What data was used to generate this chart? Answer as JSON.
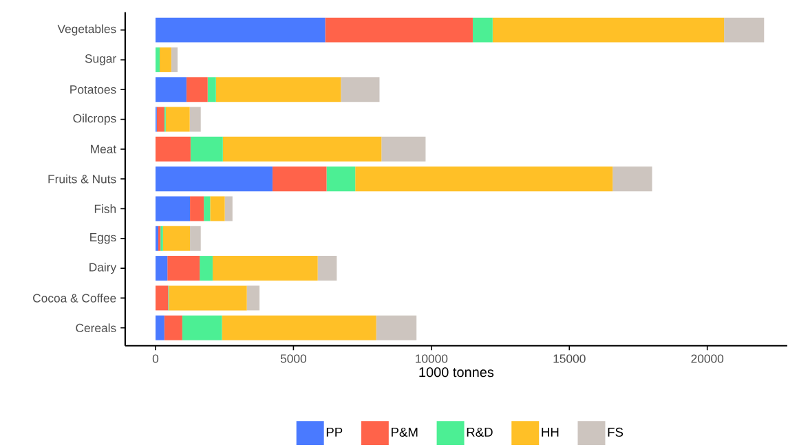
{
  "chart_data": {
    "type": "bar",
    "orientation": "horizontal",
    "stacked": true,
    "xlabel": "1000 tonnes",
    "categories": [
      "Vegetables",
      "Sugar",
      "Potatoes",
      "Oilcrops",
      "Meat",
      "Fruits & Nuts",
      "Fish",
      "Eggs",
      "Dairy",
      "Cocoa & Coffee",
      "Cereals"
    ],
    "series": [
      {
        "name": "PP",
        "color": "#4a7aff",
        "values": [
          6150,
          0,
          1120,
          45,
          0,
          4240,
          1250,
          100,
          430,
          0,
          320
        ]
      },
      {
        "name": "P&M",
        "color": "#ff634a",
        "values": [
          5350,
          0,
          770,
          275,
          1270,
          1960,
          500,
          80,
          1170,
          460,
          650
        ]
      },
      {
        "name": "R&D",
        "color": "#4cef94",
        "values": [
          720,
          150,
          300,
          50,
          1170,
          1040,
          230,
          90,
          470,
          30,
          1440
        ]
      },
      {
        "name": "HH",
        "color": "#ffc027",
        "values": [
          8390,
          420,
          4530,
          870,
          5750,
          9330,
          530,
          980,
          3810,
          2820,
          5590
        ]
      },
      {
        "name": "FS",
        "color": "#cdc5bf",
        "values": [
          1450,
          230,
          1400,
          400,
          1600,
          1430,
          280,
          390,
          690,
          460,
          1460
        ]
      }
    ],
    "xlim": [
      -1100,
      22900
    ],
    "xticks": [
      0,
      5000,
      10000,
      15000,
      20000
    ],
    "legend": "bottom"
  }
}
